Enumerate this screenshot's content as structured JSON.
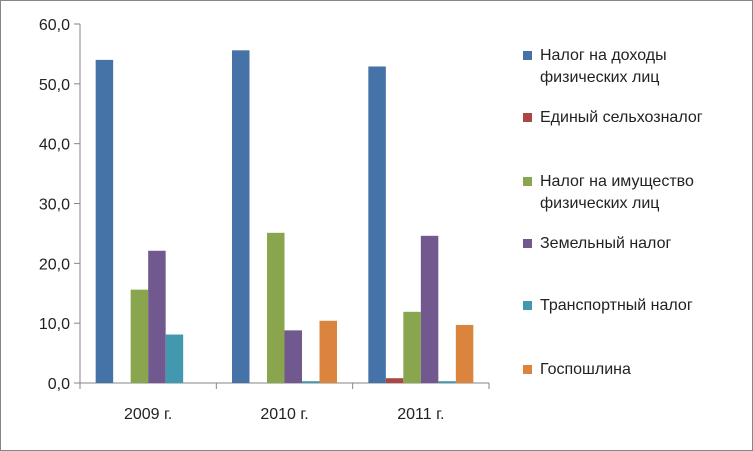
{
  "chart_data": {
    "type": "bar",
    "categories": [
      "2009 г.",
      "2010 г.",
      "2011 г."
    ],
    "series": [
      {
        "name": "Налог на доходы физических лиц",
        "color": "#4572A7",
        "values": [
          54.0,
          55.6,
          52.9
        ]
      },
      {
        "name": "Единый сельхозналог",
        "color": "#AA4643",
        "values": [
          0.0,
          0.0,
          0.8
        ]
      },
      {
        "name": "Налог на имущество физических лиц",
        "color": "#89A54E",
        "values": [
          15.6,
          25.1,
          11.9
        ]
      },
      {
        "name": "Земельный налог",
        "color": "#71588F",
        "values": [
          22.1,
          8.8,
          24.6
        ]
      },
      {
        "name": "Транспортный налог",
        "color": "#4198AF",
        "values": [
          8.1,
          0.3,
          0.3
        ]
      },
      {
        "name": "Госпошлина",
        "color": "#DB843D",
        "values": [
          0.0,
          10.4,
          9.7
        ]
      }
    ],
    "ylim": [
      0,
      60
    ],
    "yticks": [
      "0,0",
      "10,0",
      "20,0",
      "30,0",
      "40,0",
      "50,0",
      "60,0"
    ],
    "grid": false,
    "legend_position": "right"
  }
}
